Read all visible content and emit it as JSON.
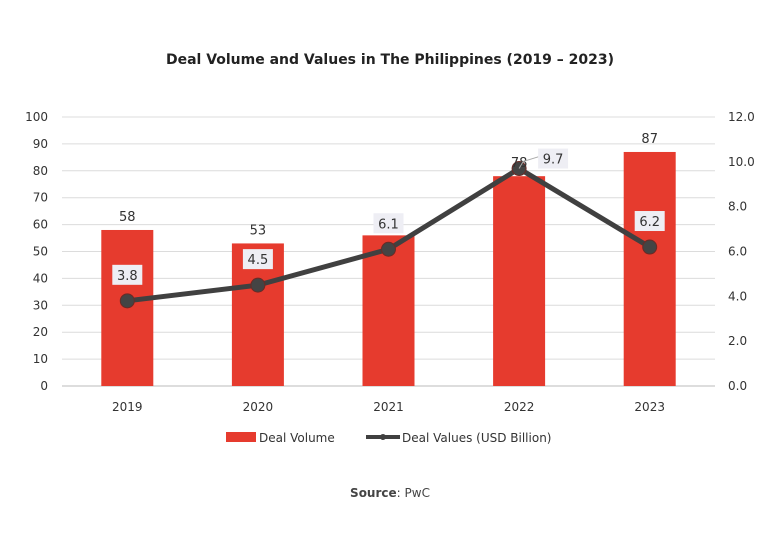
{
  "chart_data": {
    "type": "bar+line",
    "title": "Deal Volume and Values in The Philippines (2019 – 2023)",
    "categories": [
      "2019",
      "2020",
      "2021",
      "2022",
      "2023"
    ],
    "series": [
      {
        "name": "Deal Volume",
        "type": "bar",
        "axis": "left",
        "values": [
          58,
          53,
          56,
          78,
          87
        ],
        "labels": [
          "58",
          "53",
          "",
          "78",
          "87"
        ],
        "color": "#e63b2e"
      },
      {
        "name": "Deal Values (USD Billion)",
        "type": "line",
        "axis": "right",
        "values": [
          3.8,
          4.5,
          6.1,
          9.7,
          6.2
        ],
        "labels": [
          "3.8",
          "4.5",
          "6.1",
          "9.7",
          "6.2"
        ],
        "color": "#404040"
      }
    ],
    "y_left": {
      "min": 0,
      "max": 100,
      "ticks": [
        "0",
        "10",
        "20",
        "30",
        "40",
        "50",
        "60",
        "70",
        "80",
        "90",
        "100"
      ]
    },
    "y_right": {
      "min": 0,
      "max": 12,
      "ticks": [
        "0.0",
        "2.0",
        "4.0",
        "6.0",
        "8.0",
        "10.0",
        "12.0"
      ]
    },
    "grid": true,
    "legend": "bottom"
  },
  "source": {
    "label": "Source",
    "value": ": PwC"
  }
}
